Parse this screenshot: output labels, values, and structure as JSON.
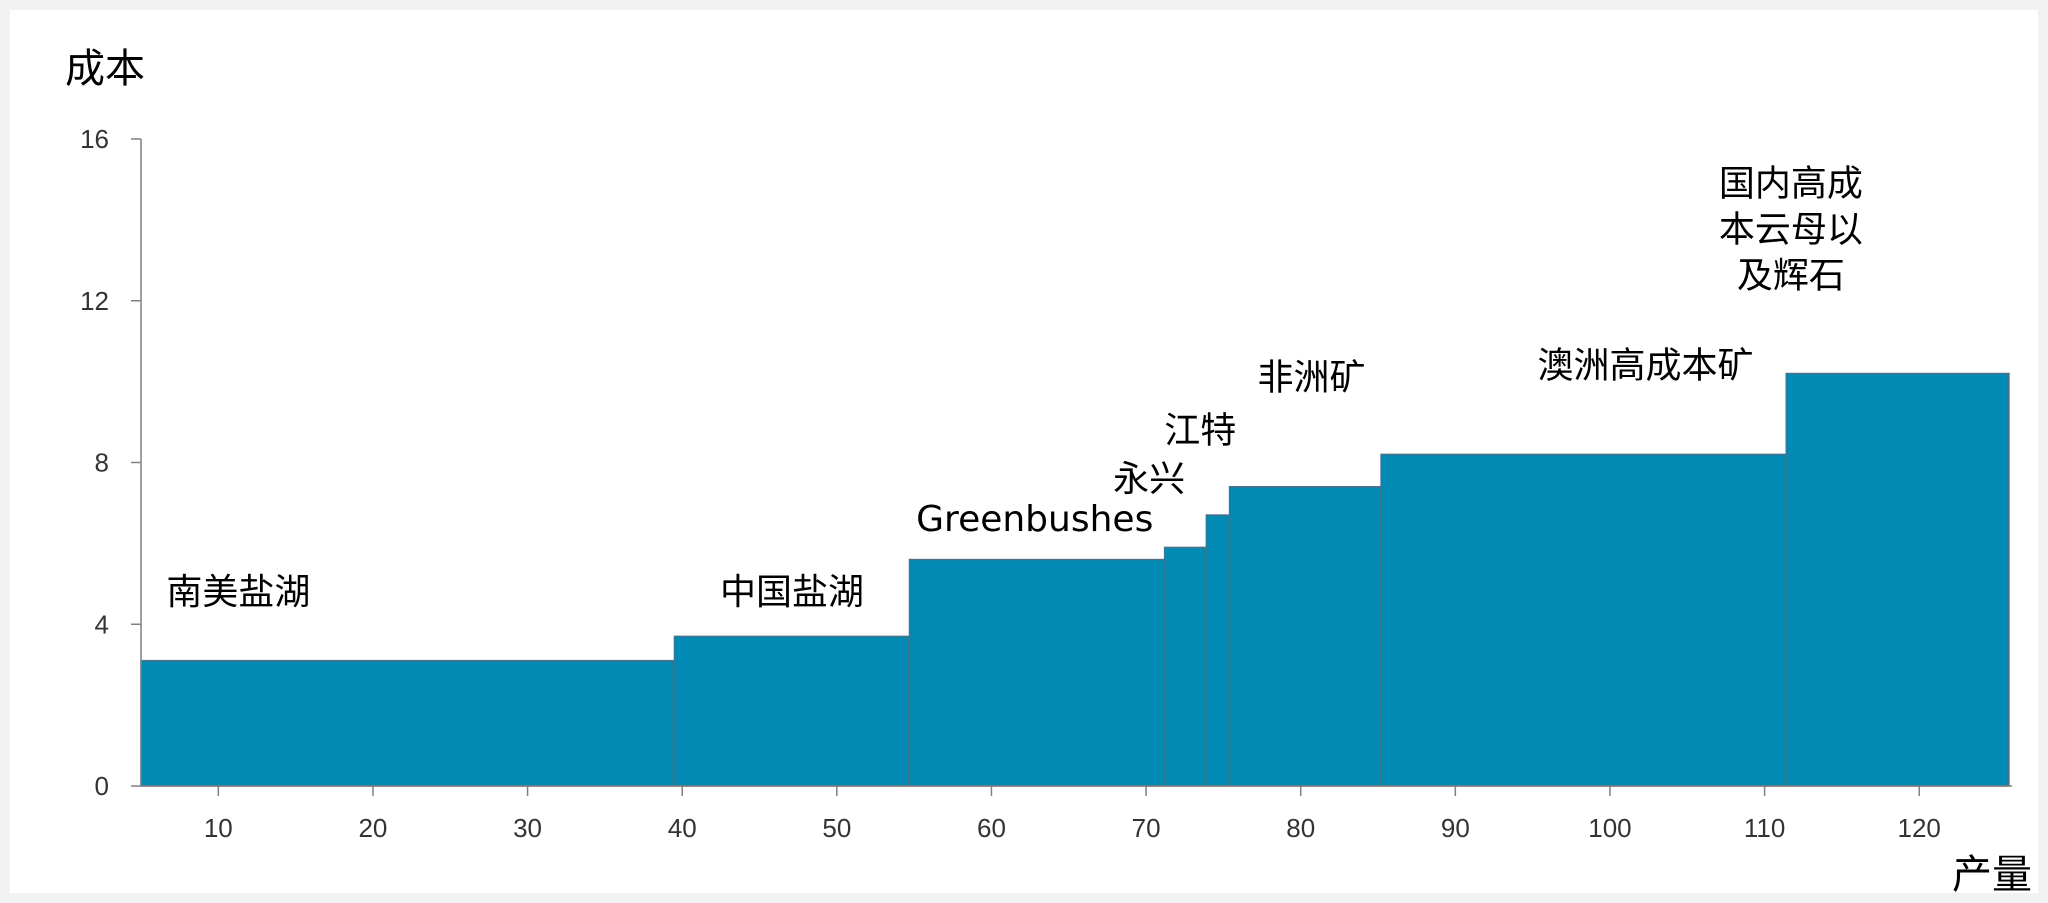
{
  "chart_data": {
    "type": "bar",
    "ylabel": "成本",
    "xlabel": "产量",
    "xlim": [
      5,
      126
    ],
    "ylim": [
      0,
      16
    ],
    "x_ticks": [
      "10",
      "20",
      "30",
      "40",
      "50",
      "60",
      "70",
      "80",
      "90",
      "100",
      "110",
      "120"
    ],
    "x_tick_values": [
      10,
      20,
      30,
      40,
      50,
      60,
      70,
      80,
      90,
      100,
      110,
      120
    ],
    "y_ticks": [
      "0",
      "4",
      "8",
      "12",
      "16"
    ],
    "y_tick_values": [
      0,
      4,
      8,
      12,
      16
    ],
    "bars": [
      {
        "x0": 5,
        "x1": 39.5,
        "value": 3.1
      },
      {
        "x0": 39.5,
        "x1": 54.7,
        "value": 3.7
      },
      {
        "x0": 54.7,
        "x1": 71.2,
        "value": 5.6
      },
      {
        "x0": 71.2,
        "x1": 73.9,
        "value": 5.9
      },
      {
        "x0": 73.9,
        "x1": 75.4,
        "value": 6.7
      },
      {
        "x0": 75.4,
        "x1": 85.2,
        "value": 7.4
      },
      {
        "x0": 85.2,
        "x1": 111.4,
        "value": 8.2
      },
      {
        "x0": 111.4,
        "x1": 125.8,
        "value": 10.2
      }
    ],
    "annotations": [
      {
        "lines": [
          "南美盐湖"
        ],
        "x": 11.3,
        "y": 4.5
      },
      {
        "lines": [
          "中国盐湖"
        ],
        "x": 47.1,
        "y": 4.5
      },
      {
        "lines": [
          "Greenbushes"
        ],
        "x": 62.8,
        "y": 6.3
      },
      {
        "lines": [
          "永兴"
        ],
        "x": 70.2,
        "y": 7.3
      },
      {
        "lines": [
          "江特"
        ],
        "x": 73.5,
        "y": 8.5
      },
      {
        "lines": [
          "非洲矿"
        ],
        "x": 80.7,
        "y": 9.8
      },
      {
        "lines": [
          "澳洲高成本矿"
        ],
        "x": 102.3,
        "y": 10.1
      },
      {
        "lines": [
          "国内高成",
          "本云母以",
          "及辉石"
        ],
        "x": 111.7,
        "y": 14.6
      }
    ],
    "colors": {
      "bar": "#008ab4",
      "bar_edge": "#4f6f86",
      "axis": "#808080",
      "text": "#000000",
      "tick_text": "#333333"
    }
  }
}
